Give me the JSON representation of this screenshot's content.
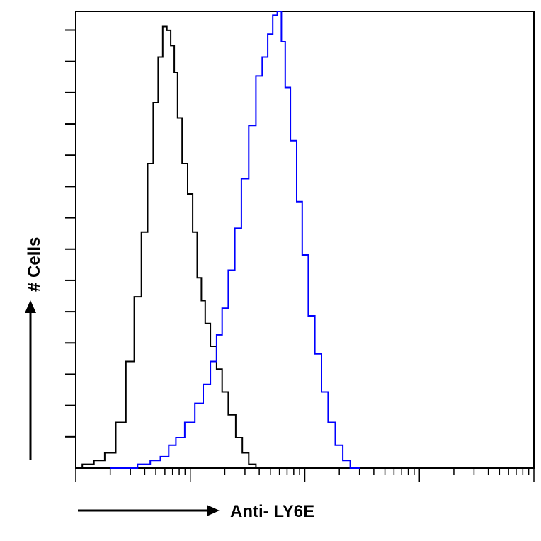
{
  "chart_data": {
    "type": "line",
    "xlabel": "Anti- LY6E",
    "ylabel": "# Cells",
    "x_scale": "log",
    "xlim": [
      1,
      10000
    ],
    "ylim": [
      0,
      120
    ],
    "grid": false,
    "legend": "none",
    "series": [
      {
        "color": "#000000",
        "x": [
          1.0,
          1.3,
          1.6,
          2.0,
          2.5,
          3.0,
          3.5,
          4.0,
          4.5,
          5.0,
          5.5,
          6.0,
          6.5,
          7.0,
          7.5,
          8.0,
          9.0,
          10.0,
          11.0,
          12.0,
          13.0,
          14.0,
          16.0,
          18.0,
          20.0,
          23.0,
          27.0,
          30.0,
          35.0,
          40.0,
          45.0,
          50.0
        ],
        "y": [
          0,
          1,
          2,
          4,
          12,
          28,
          45,
          62,
          80,
          96,
          108,
          116,
          115,
          111,
          104,
          92,
          80,
          72,
          62,
          50,
          44,
          38,
          32,
          26,
          20,
          14,
          8,
          4,
          1,
          0,
          0,
          0
        ]
      },
      {
        "color": "#0000ff",
        "x": [
          2.0,
          3.0,
          4.0,
          5.0,
          6.0,
          7.0,
          8.0,
          10.0,
          12.0,
          14.0,
          16.0,
          18.0,
          20.0,
          23.0,
          26.0,
          30.0,
          35.0,
          40.0,
          45.0,
          50.0,
          55.0,
          60.0,
          65.0,
          70.0,
          80.0,
          90.0,
          100.0,
          115.0,
          130.0,
          150.0,
          170.0,
          200.0,
          230.0,
          270.0,
          300.0
        ],
        "y": [
          0,
          0,
          1,
          2,
          3,
          6,
          8,
          12,
          17,
          22,
          28,
          35,
          42,
          52,
          63,
          76,
          90,
          103,
          108,
          114,
          119,
          120,
          112,
          100,
          86,
          70,
          56,
          40,
          30,
          20,
          12,
          6,
          2,
          0,
          0
        ]
      }
    ]
  }
}
